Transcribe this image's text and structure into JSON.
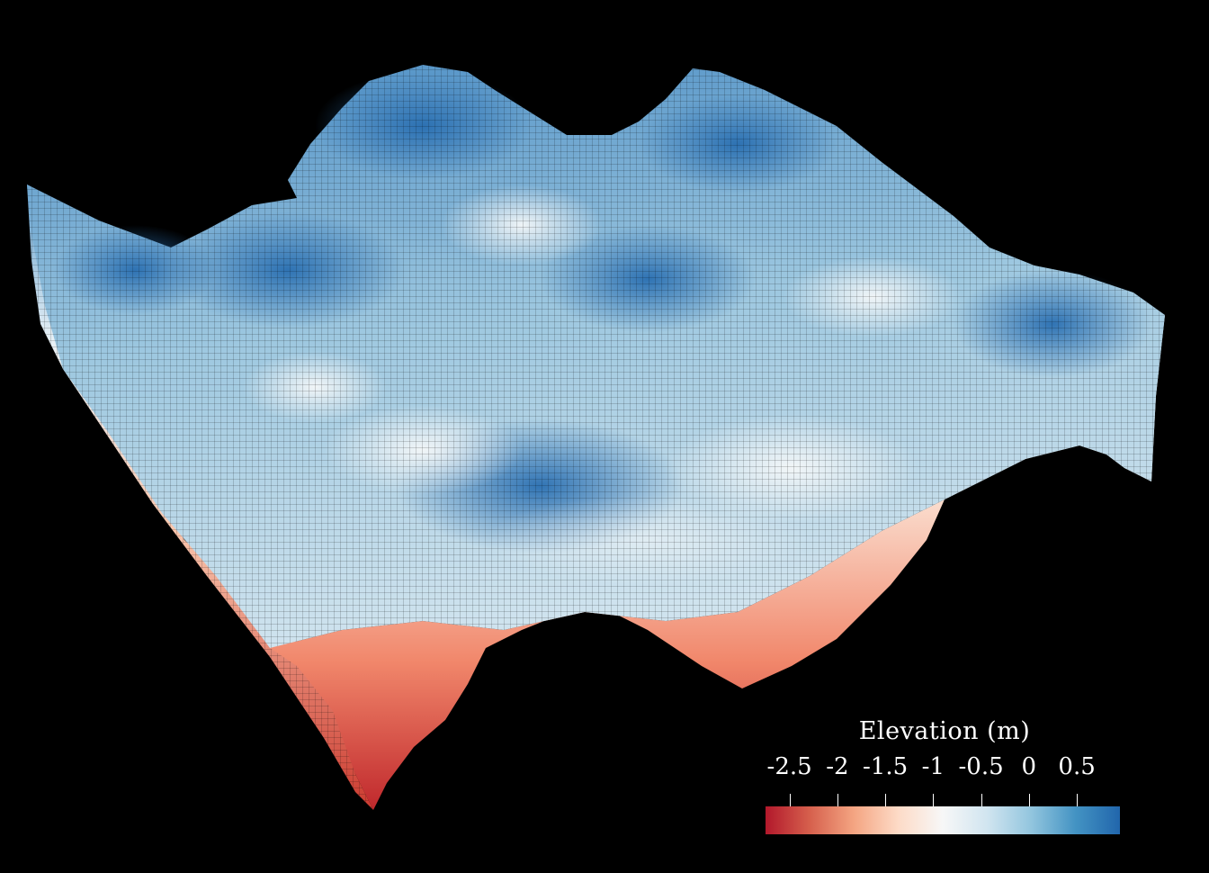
{
  "colors": {
    "background": "#000000",
    "low": "#b2182b",
    "mid": "#f7f7f7",
    "high": "#2166ac"
  },
  "legend": {
    "title": "Elevation (m)",
    "ticks": [
      {
        "value": -2.5,
        "label": "-2.5"
      },
      {
        "value": -2,
        "label": "-2"
      },
      {
        "value": -1.5,
        "label": "-1.5"
      },
      {
        "value": -1,
        "label": "-1"
      },
      {
        "value": -0.5,
        "label": "-0.5"
      },
      {
        "value": 0,
        "label": "0"
      },
      {
        "value": 0.5,
        "label": "0.5"
      }
    ],
    "range": [
      -2.75,
      0.95
    ],
    "colormap": [
      "#b2182b",
      "#d6604d",
      "#f4a582",
      "#fddbc7",
      "#f7f7f7",
      "#d1e5f0",
      "#92c5de",
      "#4393c3",
      "#2166ac"
    ]
  }
}
